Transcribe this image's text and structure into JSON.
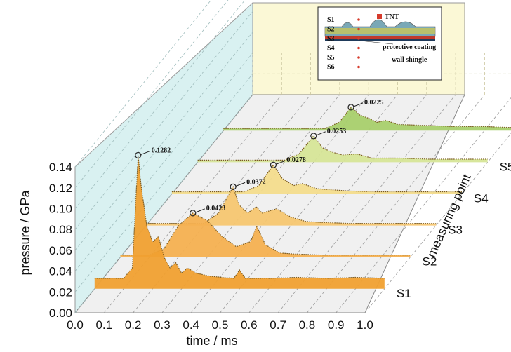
{
  "chart_data": {
    "type": "area",
    "style": "3d-waterfall",
    "xlabel": "time / ms",
    "ylabel": "pressure / GPa",
    "zlabel": "measuring point",
    "x_ticks": [
      "0.0",
      "0.1",
      "0.2",
      "0.3",
      "0.4",
      "0.5",
      "0.6",
      "0.7",
      "0.8",
      "0.9",
      "1.0"
    ],
    "y_ticks": [
      "0.00",
      "0.02",
      "0.04",
      "0.06",
      "0.08",
      "0.10",
      "0.12",
      "0.14"
    ],
    "xlim": [
      0,
      1.0
    ],
    "ylim": [
      0,
      0.14
    ],
    "series": [
      {
        "name": "S1",
        "color": "#f0a030",
        "peak_label": "0.1282",
        "peak": [
          0.15,
          0.1282
        ],
        "points": [
          [
            0,
            0.01
          ],
          [
            0.1,
            0.01
          ],
          [
            0.13,
            0.02
          ],
          [
            0.15,
            0.1282
          ],
          [
            0.16,
            0.1
          ],
          [
            0.18,
            0.06
          ],
          [
            0.2,
            0.045
          ],
          [
            0.22,
            0.05
          ],
          [
            0.24,
            0.03
          ],
          [
            0.26,
            0.02
          ],
          [
            0.28,
            0.025
          ],
          [
            0.3,
            0.015
          ],
          [
            0.32,
            0.02
          ],
          [
            0.35,
            0.015
          ],
          [
            0.4,
            0.012
          ],
          [
            0.48,
            0.01
          ],
          [
            0.5,
            0.018
          ],
          [
            0.52,
            0.01
          ],
          [
            0.6,
            0.01
          ],
          [
            0.7,
            0.011
          ],
          [
            0.8,
            0.01
          ],
          [
            0.9,
            0.011
          ],
          [
            1.0,
            0.01
          ]
        ]
      },
      {
        "name": "S2",
        "color": "#f4b050",
        "peak_label": "0.0423",
        "peak": [
          0.25,
          0.0423
        ],
        "points": [
          [
            0,
            0.002
          ],
          [
            0.1,
            0.002
          ],
          [
            0.15,
            0.008
          ],
          [
            0.2,
            0.03
          ],
          [
            0.25,
            0.0423
          ],
          [
            0.3,
            0.035
          ],
          [
            0.35,
            0.02
          ],
          [
            0.4,
            0.01
          ],
          [
            0.45,
            0.015
          ],
          [
            0.47,
            0.03
          ],
          [
            0.5,
            0.012
          ],
          [
            0.55,
            0.004
          ],
          [
            0.6,
            0.003
          ],
          [
            0.7,
            0.002
          ],
          [
            0.8,
            0.002
          ],
          [
            0.9,
            0.002
          ],
          [
            1.0,
            0.002
          ]
        ]
      },
      {
        "name": "S3",
        "color": "#f6c670",
        "peak_label": "0.0372",
        "peak": [
          0.3,
          0.0372
        ],
        "points": [
          [
            0,
            0.002
          ],
          [
            0.2,
            0.002
          ],
          [
            0.25,
            0.012
          ],
          [
            0.3,
            0.0372
          ],
          [
            0.32,
            0.02
          ],
          [
            0.35,
            0.012
          ],
          [
            0.38,
            0.018
          ],
          [
            0.4,
            0.012
          ],
          [
            0.45,
            0.016
          ],
          [
            0.5,
            0.008
          ],
          [
            0.55,
            0.004
          ],
          [
            0.6,
            0.003
          ],
          [
            0.7,
            0.002
          ],
          [
            0.8,
            0.002
          ],
          [
            0.9,
            0.002
          ],
          [
            1.0,
            0.002
          ]
        ]
      },
      {
        "name": "S4",
        "color": "#f3dc8c",
        "peak_label": "0.0278",
        "peak": [
          0.35,
          0.0278
        ],
        "points": [
          [
            0,
            0.002
          ],
          [
            0.25,
            0.002
          ],
          [
            0.3,
            0.008
          ],
          [
            0.35,
            0.0278
          ],
          [
            0.38,
            0.015
          ],
          [
            0.42,
            0.008
          ],
          [
            0.45,
            0.01
          ],
          [
            0.5,
            0.005
          ],
          [
            0.6,
            0.003
          ],
          [
            0.7,
            0.002
          ],
          [
            0.8,
            0.002
          ],
          [
            0.9,
            0.002
          ],
          [
            1.0,
            0.002
          ]
        ]
      },
      {
        "name": "S5",
        "color": "#d6e597",
        "peak_label": "0.0253",
        "peak": [
          0.4,
          0.0253
        ],
        "points": [
          [
            0,
            0.002
          ],
          [
            0.3,
            0.002
          ],
          [
            0.35,
            0.008
          ],
          [
            0.4,
            0.0253
          ],
          [
            0.43,
            0.014
          ],
          [
            0.46,
            0.01
          ],
          [
            0.5,
            0.007
          ],
          [
            0.55,
            0.008
          ],
          [
            0.6,
            0.004
          ],
          [
            0.7,
            0.004
          ],
          [
            0.8,
            0.003
          ],
          [
            0.9,
            0.003
          ],
          [
            1.0,
            0.003
          ]
        ]
      },
      {
        "name": "S6",
        "color": "#a8cf6c",
        "peak_label": "0.0225",
        "peak": [
          0.44,
          0.0225
        ],
        "points": [
          [
            0,
            0.002
          ],
          [
            0.35,
            0.002
          ],
          [
            0.4,
            0.008
          ],
          [
            0.44,
            0.0225
          ],
          [
            0.47,
            0.015
          ],
          [
            0.5,
            0.012
          ],
          [
            0.53,
            0.008
          ],
          [
            0.56,
            0.01
          ],
          [
            0.6,
            0.006
          ],
          [
            0.7,
            0.005
          ],
          [
            0.8,
            0.004
          ],
          [
            0.9,
            0.004
          ],
          [
            1.0,
            0.003
          ]
        ]
      }
    ]
  },
  "inset": {
    "labels": [
      "S1",
      "S2",
      "S3",
      "S4",
      "S5",
      "S6"
    ],
    "tnt_label": "TNT",
    "coating_label": "protective coating",
    "shingle_label": "wall shingle"
  }
}
